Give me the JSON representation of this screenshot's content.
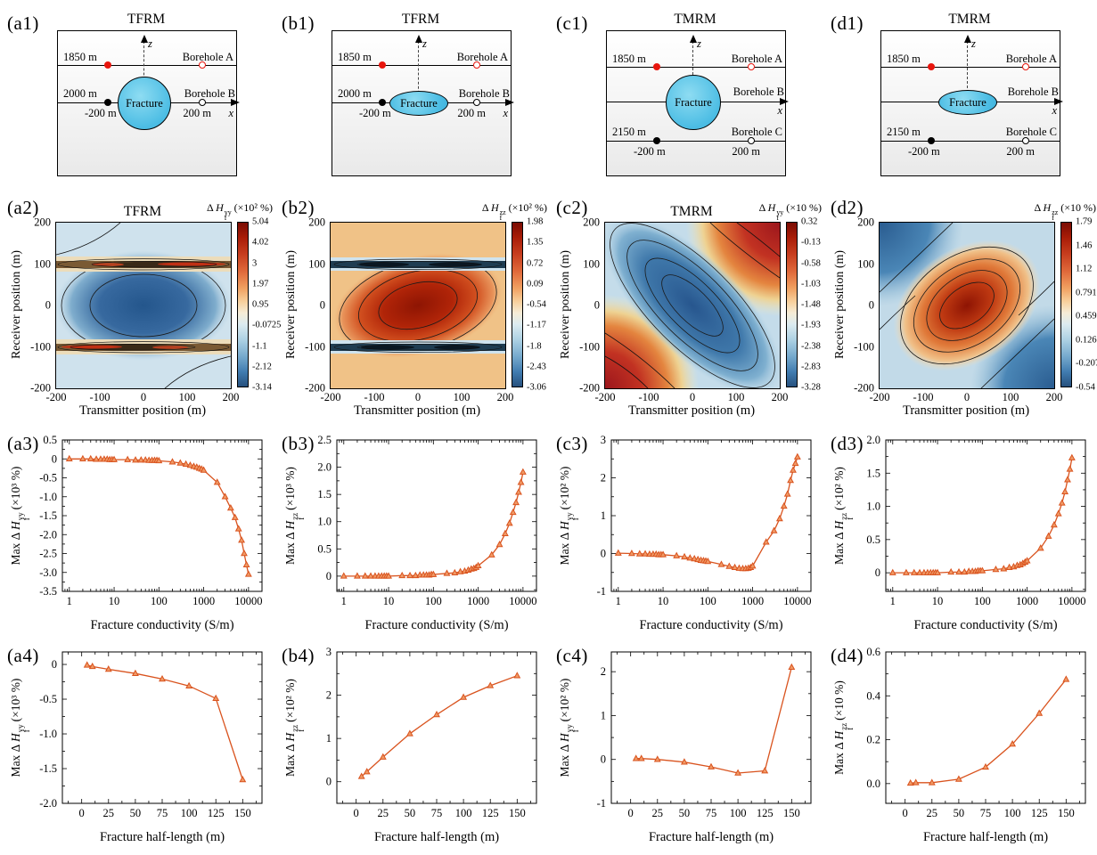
{
  "schematics": [
    {
      "panel": "(a1)",
      "title": "TFRM",
      "fracture_label": "Fracture",
      "depth_a": "1850 m",
      "depth_b": "2000 m",
      "neg": "-200 m",
      "pos": "200 m",
      "bh_a": "Borehole A",
      "bh_b": "Borehole B",
      "ax": "x",
      "az": "z",
      "fracture_shape": "circle"
    },
    {
      "panel": "(b1)",
      "title": "TFRM",
      "fracture_label": "Fracture",
      "depth_a": "1850 m",
      "depth_b": "2000 m",
      "neg": "-200 m",
      "pos": "200 m",
      "bh_a": "Borehole A",
      "bh_b": "Borehole B",
      "ax": "x",
      "az": "z",
      "fracture_shape": "ellipse"
    },
    {
      "panel": "(c1)",
      "title": "TMRM",
      "fracture_label": "Fracture",
      "depth_a": "1850 m",
      "depth_c": "2150 m",
      "neg": "-200 m",
      "pos": "200 m",
      "bh_a": "Borehole A",
      "bh_b": "Borehole B",
      "bh_c": "Borehole C",
      "ax": "x",
      "az": "z",
      "fracture_shape": "circle"
    },
    {
      "panel": "(d1)",
      "title": "TMRM",
      "fracture_label": "Fracture",
      "depth_a": "1850 m",
      "depth_c": "2150 m",
      "neg": "-200 m",
      "pos": "200 m",
      "bh_a": "Borehole A",
      "bh_b": "Borehole B",
      "bh_c": "Borehole C",
      "ax": "x",
      "az": "z",
      "fracture_shape": "ellipse"
    }
  ],
  "chart_data": [
    {
      "type": "contour",
      "panel": "(a2)",
      "title": "TFRM",
      "colorbar_label": {
        "prefix": "Δ ",
        "sym": "H",
        "sup": "yy",
        "sub": "f",
        "units": "(×10² %)"
      },
      "colorbar_ticks": [
        "5.04",
        "4.02",
        "3",
        "1.97",
        "0.95",
        "-0.0725",
        "-1.1",
        "-2.12",
        "-3.14"
      ],
      "xlabel": "Transmitter position (m)",
      "ylabel": "Receiver position (m)",
      "xrange": [
        -200,
        200
      ],
      "yrange": [
        -200,
        200
      ],
      "xticklabels": [
        "-200",
        "-100",
        "0",
        "100",
        "200"
      ],
      "yticklabels": [
        "200",
        "100",
        "0",
        "-100",
        "-200"
      ],
      "pattern": "negative blue basin centered at (0,0); sharp red/dark anomaly bands at receiver ±100 m"
    },
    {
      "type": "contour",
      "panel": "(b2)",
      "title": "",
      "colorbar_label": {
        "prefix": "Δ ",
        "sym": "H",
        "sup": "zz",
        "sub": "f",
        "units": "(×10² %)"
      },
      "colorbar_ticks": [
        "1.98",
        "1.35",
        "0.72",
        "0.09",
        "-0.54",
        "-1.17",
        "-1.8",
        "-2.43",
        "-3.06"
      ],
      "xlabel": "Transmitter position (m)",
      "ylabel": "Receiver position (m)",
      "xrange": [
        -200,
        200
      ],
      "yrange": [
        -200,
        200
      ],
      "xticklabels": [
        "-200",
        "-100",
        "0",
        "100",
        "200"
      ],
      "yticklabels": [
        "200",
        "100",
        "0",
        "-100",
        "-200"
      ],
      "pattern": "positive red lobe centered at (0,0); dark blue anomaly bands at receiver ±100 m"
    },
    {
      "type": "contour",
      "panel": "(c2)",
      "title": "TMRM",
      "colorbar_label": {
        "prefix": "Δ ",
        "sym": "H",
        "sup": "yy",
        "sub": "f",
        "units": "(×10 %)"
      },
      "colorbar_ticks": [
        "0.32",
        "-0.13",
        "-0.58",
        "-1.03",
        "-1.48",
        "-1.93",
        "-2.38",
        "-2.83",
        "-3.28"
      ],
      "xlabel": "Transmitter position (m)",
      "ylabel": "Receiver position (m)",
      "xrange": [
        -200,
        200
      ],
      "yrange": [
        -200,
        200
      ],
      "xticklabels": [
        "-200",
        "-100",
        "0",
        "100",
        "200"
      ],
      "yticklabels": [
        "200",
        "100",
        "0",
        "-100",
        "-200"
      ],
      "pattern": "blue trough elongated along the main diagonal; red highs in top-right and bottom-left corners"
    },
    {
      "type": "contour",
      "panel": "(d2)",
      "title": "",
      "colorbar_label": {
        "prefix": "Δ ",
        "sym": "H",
        "sup": "zz",
        "sub": "f",
        "units": "(×10 %)"
      },
      "colorbar_ticks": [
        "1.79",
        "1.46",
        "1.12",
        "0.791",
        "0.459",
        "0.126",
        "-0.207",
        "-0.54"
      ],
      "xlabel": "Transmitter position (m)",
      "ylabel": "Receiver position (m)",
      "xrange": [
        -200,
        200
      ],
      "yrange": [
        -200,
        200
      ],
      "xticklabels": [
        "-200",
        "-100",
        "0",
        "100",
        "200"
      ],
      "yticklabels": [
        "200",
        "100",
        "0",
        "-100",
        "-200"
      ],
      "pattern": "red high centered at (0,0) elongated along anti-diagonal; blue lows in top-left and bottom-right corners"
    },
    {
      "type": "line",
      "panel": "(a3)",
      "xlabel": "Fracture conductivity (S/m)",
      "xscale": "log",
      "ylabel": {
        "prefix": "Max Δ ",
        "sym": "H",
        "sup": "yy",
        "sub": "f",
        "units": "(×10³ %)"
      },
      "xlim": [
        0.7,
        20000
      ],
      "xticks": [
        1,
        10,
        100,
        1000,
        10000
      ],
      "xticklabels": [
        "1",
        "10",
        "100",
        "1000",
        "10000"
      ],
      "ylim": [
        -3.5,
        0.5
      ],
      "yticks": [
        0.5,
        0,
        -0.5,
        -1,
        -1.5,
        -2,
        -2.5,
        -3,
        -3.5
      ],
      "yticklabels": [
        "0.5",
        "0",
        "-0.5",
        "-1.0",
        "-1.5",
        "-2.0",
        "-2.5",
        "-3.0",
        "-3.5"
      ],
      "color": "#d9531e",
      "marker": "triangle",
      "x": [
        1,
        2,
        3,
        4,
        5,
        6,
        7,
        8,
        9,
        10,
        20,
        30,
        40,
        50,
        60,
        70,
        80,
        90,
        100,
        200,
        300,
        400,
        500,
        600,
        700,
        800,
        900,
        1000,
        2000,
        3000,
        4000,
        5000,
        6000,
        7000,
        8000,
        9000,
        10000
      ],
      "y": [
        0,
        0,
        0,
        -0.01,
        -0.01,
        -0.01,
        -0.01,
        -0.02,
        -0.02,
        -0.02,
        -0.02,
        -0.03,
        -0.03,
        -0.03,
        -0.04,
        -0.04,
        -0.04,
        -0.04,
        -0.05,
        -0.08,
        -0.11,
        -0.14,
        -0.17,
        -0.2,
        -0.22,
        -0.25,
        -0.27,
        -0.3,
        -0.62,
        -1.0,
        -1.3,
        -1.55,
        -1.85,
        -2.15,
        -2.5,
        -2.8,
        -3.05
      ]
    },
    {
      "type": "line",
      "panel": "(b3)",
      "xlabel": "Fracture conductivity (S/m)",
      "xscale": "log",
      "ylabel": {
        "prefix": "Max Δ ",
        "sym": "H",
        "sup": "zz",
        "sub": "f",
        "units": "(×10³ %)"
      },
      "xlim": [
        0.7,
        20000
      ],
      "xticks": [
        1,
        10,
        100,
        1000,
        10000
      ],
      "xticklabels": [
        "1",
        "10",
        "100",
        "1000",
        "10000"
      ],
      "ylim": [
        -0.28,
        2.5
      ],
      "yticks": [
        0,
        0.5,
        1,
        1.5,
        2,
        2.5
      ],
      "yticklabels": [
        "0",
        "0.5",
        "1.0",
        "1.5",
        "2.0",
        "2.5"
      ],
      "color": "#d9531e",
      "marker": "triangle",
      "x": [
        1,
        2,
        3,
        4,
        5,
        6,
        7,
        8,
        9,
        10,
        20,
        30,
        40,
        50,
        60,
        70,
        80,
        90,
        100,
        200,
        300,
        400,
        500,
        600,
        700,
        800,
        900,
        1000,
        2000,
        3000,
        4000,
        5000,
        6000,
        7000,
        8000,
        9000,
        10000
      ],
      "y": [
        0,
        0,
        0,
        0,
        0,
        0,
        0,
        0,
        0,
        0,
        0.01,
        0.01,
        0.01,
        0.02,
        0.02,
        0.02,
        0.02,
        0.03,
        0.03,
        0.05,
        0.06,
        0.08,
        0.09,
        0.11,
        0.13,
        0.14,
        0.16,
        0.19,
        0.39,
        0.58,
        0.78,
        0.97,
        1.17,
        1.35,
        1.54,
        1.72,
        1.91
      ]
    },
    {
      "type": "line",
      "panel": "(c3)",
      "xlabel": "Fracture conductivity (S/m)",
      "xscale": "log",
      "ylabel": {
        "prefix": "Max Δ ",
        "sym": "H",
        "sup": "yy",
        "sub": "f",
        "units": "(×10² %)"
      },
      "xlim": [
        0.7,
        20000
      ],
      "xticks": [
        1,
        10,
        100,
        1000,
        10000
      ],
      "xticklabels": [
        "1",
        "10",
        "100",
        "1000",
        "10000"
      ],
      "ylim": [
        -1,
        3
      ],
      "yticks": [
        -1,
        0,
        1,
        2,
        3
      ],
      "yticklabels": [
        "-1",
        "0",
        "1",
        "2",
        "3"
      ],
      "color": "#d9531e",
      "marker": "triangle",
      "x": [
        1,
        2,
        3,
        4,
        5,
        6,
        7,
        8,
        9,
        10,
        20,
        30,
        40,
        50,
        60,
        70,
        80,
        90,
        100,
        200,
        300,
        400,
        500,
        600,
        700,
        800,
        900,
        1000,
        2000,
        3000,
        4000,
        5000,
        6000,
        7000,
        8000,
        9000,
        10000
      ],
      "y": [
        0.01,
        0,
        -0.01,
        -0.01,
        -0.02,
        -0.02,
        -0.02,
        -0.03,
        -0.03,
        -0.03,
        -0.06,
        -0.09,
        -0.12,
        -0.14,
        -0.16,
        -0.18,
        -0.19,
        -0.2,
        -0.21,
        -0.29,
        -0.34,
        -0.37,
        -0.39,
        -0.4,
        -0.4,
        -0.39,
        -0.37,
        -0.33,
        0.3,
        0.6,
        0.92,
        1.25,
        1.57,
        1.93,
        2.2,
        2.38,
        2.55
      ]
    },
    {
      "type": "line",
      "panel": "(d3)",
      "xlabel": "Fracture conductivity (S/m)",
      "xscale": "log",
      "ylabel": {
        "prefix": "Max Δ ",
        "sym": "H",
        "sup": "zz",
        "sub": "f",
        "units": "(×10² %)"
      },
      "xlim": [
        0.7,
        20000
      ],
      "xticks": [
        1,
        10,
        100,
        1000,
        10000
      ],
      "xticklabels": [
        "1",
        "10",
        "100",
        "1000",
        "10000"
      ],
      "ylim": [
        -0.28,
        2
      ],
      "yticks": [
        0,
        0.5,
        1,
        1.5,
        2
      ],
      "yticklabels": [
        "0",
        "0.5",
        "1.0",
        "1.5",
        "2.0"
      ],
      "color": "#d9531e",
      "marker": "triangle",
      "x": [
        1,
        2,
        3,
        4,
        5,
        6,
        7,
        8,
        9,
        10,
        20,
        30,
        40,
        50,
        60,
        70,
        80,
        90,
        100,
        200,
        300,
        400,
        500,
        600,
        700,
        800,
        900,
        1000,
        2000,
        3000,
        4000,
        5000,
        6000,
        7000,
        8000,
        9000,
        10000
      ],
      "y": [
        0,
        0,
        0,
        0,
        0,
        0,
        0,
        0,
        0,
        0,
        0.01,
        0.01,
        0.01,
        0.02,
        0.02,
        0.02,
        0.03,
        0.03,
        0.03,
        0.05,
        0.06,
        0.08,
        0.09,
        0.11,
        0.12,
        0.14,
        0.16,
        0.18,
        0.37,
        0.55,
        0.72,
        0.89,
        1.05,
        1.22,
        1.4,
        1.56,
        1.73
      ]
    },
    {
      "type": "line",
      "panel": "(a4)",
      "xlabel": "Fracture half-length (m)",
      "xscale": "linear",
      "ylabel": {
        "prefix": "Max Δ ",
        "sym": "H",
        "sup": "yy",
        "sub": "f",
        "units": "(×10³ %)"
      },
      "xlim": [
        -18,
        168
      ],
      "xticks": [
        0,
        25,
        50,
        75,
        100,
        125,
        150
      ],
      "xticklabels": [
        "0",
        "25",
        "50",
        "75",
        "100",
        "125",
        "150"
      ],
      "ylim": [
        -2,
        0.18
      ],
      "yticks": [
        0,
        -0.5,
        -1,
        -1.5,
        -2
      ],
      "yticklabels": [
        "0",
        "-0.5",
        "-1.0",
        "-1.5",
        "-2.0"
      ],
      "color": "#d9531e",
      "marker": "triangle",
      "x": [
        5,
        10,
        25,
        50,
        75,
        100,
        125,
        150
      ],
      "y": [
        -0.01,
        -0.03,
        -0.07,
        -0.13,
        -0.21,
        -0.31,
        -0.49,
        -1.66
      ]
    },
    {
      "type": "line",
      "panel": "(b4)",
      "xlabel": "Fracture half-length (m)",
      "xscale": "linear",
      "ylabel": {
        "prefix": "Max Δ ",
        "sym": "H",
        "sup": "zz",
        "sub": "f",
        "units": "(×10² %)"
      },
      "xlim": [
        -18,
        168
      ],
      "xticks": [
        0,
        25,
        50,
        75,
        100,
        125,
        150
      ],
      "xticklabels": [
        "0",
        "25",
        "50",
        "75",
        "100",
        "125",
        "150"
      ],
      "ylim": [
        -0.5,
        3
      ],
      "yticks": [
        0,
        1,
        2,
        3
      ],
      "yticklabels": [
        "0",
        "1",
        "2",
        "3"
      ],
      "color": "#d9531e",
      "marker": "triangle",
      "x": [
        5,
        10,
        25,
        50,
        75,
        100,
        125,
        150
      ],
      "y": [
        0.12,
        0.23,
        0.57,
        1.11,
        1.55,
        1.95,
        2.22,
        2.45
      ]
    },
    {
      "type": "line",
      "panel": "(c4)",
      "xlabel": "Fracture half-length (m)",
      "xscale": "linear",
      "ylabel": {
        "prefix": "Max Δ ",
        "sym": "H",
        "sup": "yy",
        "sub": "f",
        "units": "(×10² %)"
      },
      "xlim": [
        -18,
        168
      ],
      "xticks": [
        0,
        25,
        50,
        75,
        100,
        125,
        150
      ],
      "xticklabels": [
        "0",
        "25",
        "50",
        "75",
        "100",
        "125",
        "150"
      ],
      "ylim": [
        -1,
        2.45
      ],
      "yticks": [
        -1,
        0,
        1,
        2
      ],
      "yticklabels": [
        "-1",
        "0",
        "1",
        "2"
      ],
      "color": "#d9531e",
      "marker": "triangle",
      "x": [
        5,
        10,
        25,
        50,
        75,
        100,
        125,
        150
      ],
      "y": [
        0.02,
        0.02,
        0,
        -0.06,
        -0.17,
        -0.31,
        -0.26,
        2.1
      ]
    },
    {
      "type": "line",
      "panel": "(d4)",
      "xlabel": "Fracture half-length (m)",
      "xscale": "linear",
      "ylabel": {
        "prefix": "Max Δ ",
        "sym": "H",
        "sup": "zz",
        "sub": "f",
        "units": "(×10 %)"
      },
      "xlim": [
        -18,
        168
      ],
      "xticks": [
        0,
        25,
        50,
        75,
        100,
        125,
        150
      ],
      "xticklabels": [
        "0",
        "25",
        "50",
        "75",
        "100",
        "125",
        "150"
      ],
      "ylim": [
        -0.09,
        0.6
      ],
      "yticks": [
        0,
        0.2,
        0.4,
        0.6
      ],
      "yticklabels": [
        "0.0",
        "0.2",
        "0.4",
        "0.6"
      ],
      "color": "#d9531e",
      "marker": "triangle",
      "x": [
        5,
        10,
        25,
        50,
        75,
        100,
        125,
        150
      ],
      "y": [
        0.002,
        0.004,
        0.004,
        0.02,
        0.075,
        0.18,
        0.32,
        0.475
      ]
    }
  ]
}
